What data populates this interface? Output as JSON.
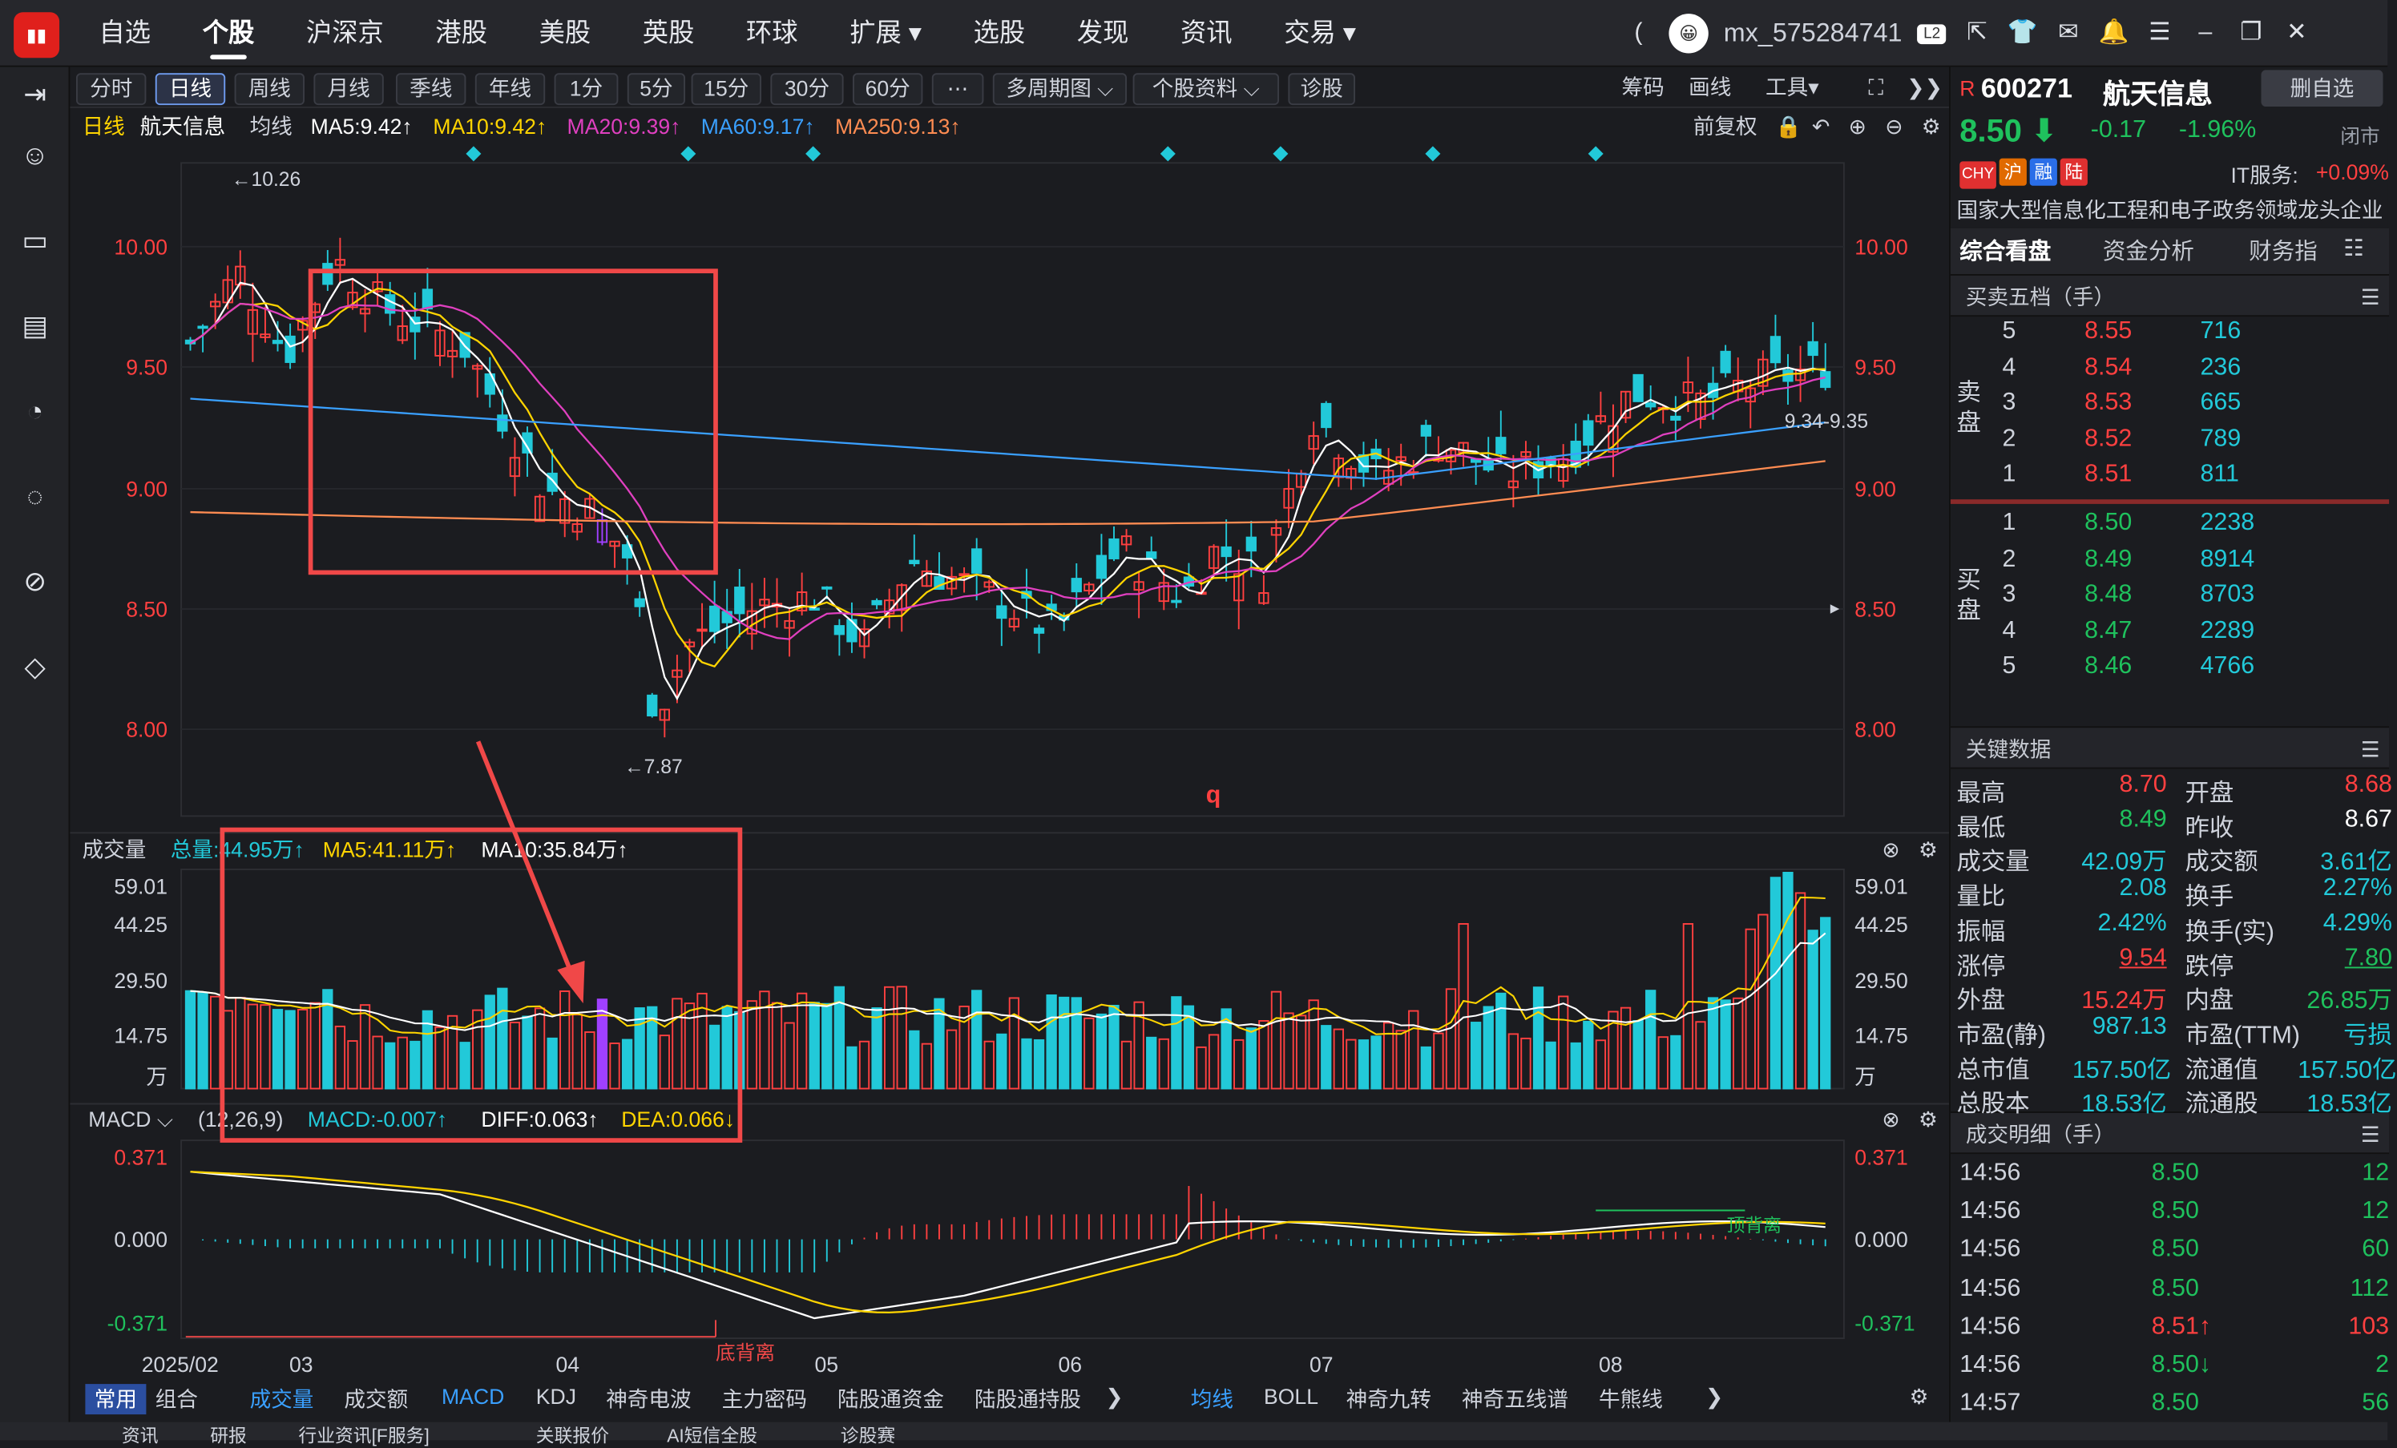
{
  "top_nav": [
    "自选",
    "个股",
    "沪深京",
    "港股",
    "美股",
    "英股",
    "环球",
    "扩展 ▾",
    "选股",
    "发现",
    "资讯",
    "交易 ▾"
  ],
  "user": {
    "name": "mx_575284741",
    "level": "L2",
    "avatar_text": "😀"
  },
  "toolbar": {
    "periods": [
      "分时",
      "日线",
      "周线",
      "月线",
      "季线",
      "年线",
      "1分",
      "5分",
      "15分",
      "30分",
      "60分",
      "⋯",
      "多周期图 ⌵",
      "个股资料 ⌵",
      "诊股"
    ],
    "right": [
      "筹码",
      "画线",
      "工具▾"
    ]
  },
  "main": {
    "line_type": "日线",
    "stock_name": "航天信息",
    "ma_label": "均线",
    "ma": [
      {
        "label": "MA5:9.42↑",
        "color": "#ffffff"
      },
      {
        "label": "MA10:9.42↑",
        "color": "#ffd400"
      },
      {
        "label": "MA20:9.39↑",
        "color": "#e040c0"
      },
      {
        "label": "MA60:9.17↑",
        "color": "#3aa0ff"
      },
      {
        "label": "MA250:9.13↑",
        "color": "#ff8c52"
      }
    ],
    "adjust": "前复权",
    "y_ticks": [
      "10.00",
      "9.50",
      "9.00",
      "8.50",
      "8.00"
    ],
    "high_note": "←10.26",
    "low_note": "←7.87",
    "range_note": "9.34-9.35",
    "q_mark": "q"
  },
  "volume": {
    "title": "成交量",
    "total": "总量:44.95万↑",
    "ma5": "MA5:41.11万↑",
    "ma10": "MA10:35.84万↑",
    "y_ticks": [
      "59.01",
      "44.25",
      "29.50",
      "14.75",
      "万"
    ]
  },
  "macd": {
    "title": "MACD ⌵",
    "params": "(12,26,9)",
    "macd": "MACD:-0.007↑",
    "diff": "DIFF:0.063↑",
    "dea": "DEA:0.066↓",
    "y_ticks": [
      "0.371",
      "0.000",
      "-0.371"
    ],
    "bottom_div": "底背离",
    "top_div": "顶背离"
  },
  "x_labels": [
    "2025/02",
    "03",
    "04",
    "05",
    "06",
    "07",
    "08"
  ],
  "bottom_tabs_left": [
    "常用",
    "组合",
    "成交量",
    "成交额",
    "MACD",
    "KDJ",
    "神奇电波",
    "主力密码",
    "陆股通资金",
    "陆股通持股",
    "❯"
  ],
  "bottom_tabs_right": [
    "均线",
    "BOLL",
    "神奇九转",
    "神奇五线谱",
    "牛熊线",
    "❯"
  ],
  "status_tabs": [
    "资讯",
    "研报",
    "行业资讯[F服务]",
    "关联报价",
    "AI短信全股",
    "诊股赛"
  ],
  "quote": {
    "code": "600271",
    "name": "航天信息",
    "add_btn": "删自选",
    "price": "8.50",
    "change": "-0.17",
    "pct": "-1.96%",
    "market_status": "闭市",
    "badges": [
      {
        "t": "CHY",
        "c": "#e03030"
      },
      {
        "t": "沪",
        "c": "#e06a00"
      },
      {
        "t": "融",
        "c": "#2a6ee8"
      },
      {
        "t": "陆",
        "c": "#e03030"
      }
    ],
    "industry": "IT服务:",
    "industry_pct": "+0.09%",
    "desc": "国家大型信息化工程和电子政务领域龙头企业",
    "tabs": [
      "综合看盘",
      "资金分析",
      "财务指",
      "☷"
    ]
  },
  "orderbook": {
    "title": "买卖五档（手）",
    "sell_label": "卖盘",
    "buy_label": "买盘",
    "sell": [
      {
        "lv": "5",
        "p": "8.55",
        "v": "716"
      },
      {
        "lv": "4",
        "p": "8.54",
        "v": "236"
      },
      {
        "lv": "3",
        "p": "8.53",
        "v": "665"
      },
      {
        "lv": "2",
        "p": "8.52",
        "v": "789"
      },
      {
        "lv": "1",
        "p": "8.51",
        "v": "811"
      }
    ],
    "buy": [
      {
        "lv": "1",
        "p": "8.50",
        "v": "2238"
      },
      {
        "lv": "2",
        "p": "8.49",
        "v": "8914"
      },
      {
        "lv": "3",
        "p": "8.48",
        "v": "8703"
      },
      {
        "lv": "4",
        "p": "8.47",
        "v": "2289"
      },
      {
        "lv": "5",
        "p": "8.46",
        "v": "4766"
      }
    ]
  },
  "keydata": {
    "title": "关键数据",
    "rows": [
      [
        {
          "k": "最高",
          "v": "8.70",
          "c": "red"
        },
        {
          "k": "开盘",
          "v": "8.68",
          "c": "red"
        }
      ],
      [
        {
          "k": "最低",
          "v": "8.49",
          "c": "green"
        },
        {
          "k": "昨收",
          "v": "8.67",
          "c": "white"
        }
      ],
      [
        {
          "k": "成交量",
          "v": "42.09万",
          "c": "cyan"
        },
        {
          "k": "成交额",
          "v": "3.61亿",
          "c": "cyan"
        }
      ],
      [
        {
          "k": "量比",
          "v": "2.08",
          "c": "cyan"
        },
        {
          "k": "换手",
          "v": "2.27%",
          "c": "cyan"
        }
      ],
      [
        {
          "k": "振幅",
          "v": "2.42%",
          "c": "cyan"
        },
        {
          "k": "换手(实)",
          "v": "4.29%",
          "c": "cyan"
        }
      ],
      [
        {
          "k": "涨停",
          "v": "9.54",
          "c": "red"
        },
        {
          "k": "跌停",
          "v": "7.80",
          "c": "green"
        }
      ],
      [
        {
          "k": "外盘",
          "v": "15.24万",
          "c": "red"
        },
        {
          "k": "内盘",
          "v": "26.85万",
          "c": "green"
        }
      ],
      [
        {
          "k": "市盈(静)",
          "v": "987.13",
          "c": "cyan"
        },
        {
          "k": "市盈(TTM)",
          "v": "亏损",
          "c": "cyan"
        }
      ],
      [
        {
          "k": "总市值",
          "v": "157.50亿",
          "c": "cyan"
        },
        {
          "k": "流通值",
          "v": "157.50亿",
          "c": "cyan"
        }
      ],
      [
        {
          "k": "总股本",
          "v": "18.53亿",
          "c": "cyan"
        },
        {
          "k": "流通股",
          "v": "18.53亿",
          "c": "cyan"
        }
      ]
    ]
  },
  "trades": {
    "title": "成交明细（手）",
    "rows": [
      {
        "t": "14:56",
        "p": "8.50",
        "v": "12",
        "c": "green"
      },
      {
        "t": "14:56",
        "p": "8.50",
        "v": "12",
        "c": "green"
      },
      {
        "t": "14:56",
        "p": "8.50",
        "v": "60",
        "c": "green"
      },
      {
        "t": "14:56",
        "p": "8.50",
        "v": "112",
        "c": "green"
      },
      {
        "t": "14:56",
        "p": "8.51↑",
        "v": "103",
        "c": "red"
      },
      {
        "t": "14:56",
        "p": "8.50↓",
        "v": "2",
        "c": "green"
      },
      {
        "t": "14:57",
        "p": "8.50",
        "v": "56",
        "c": "green"
      }
    ]
  }
}
